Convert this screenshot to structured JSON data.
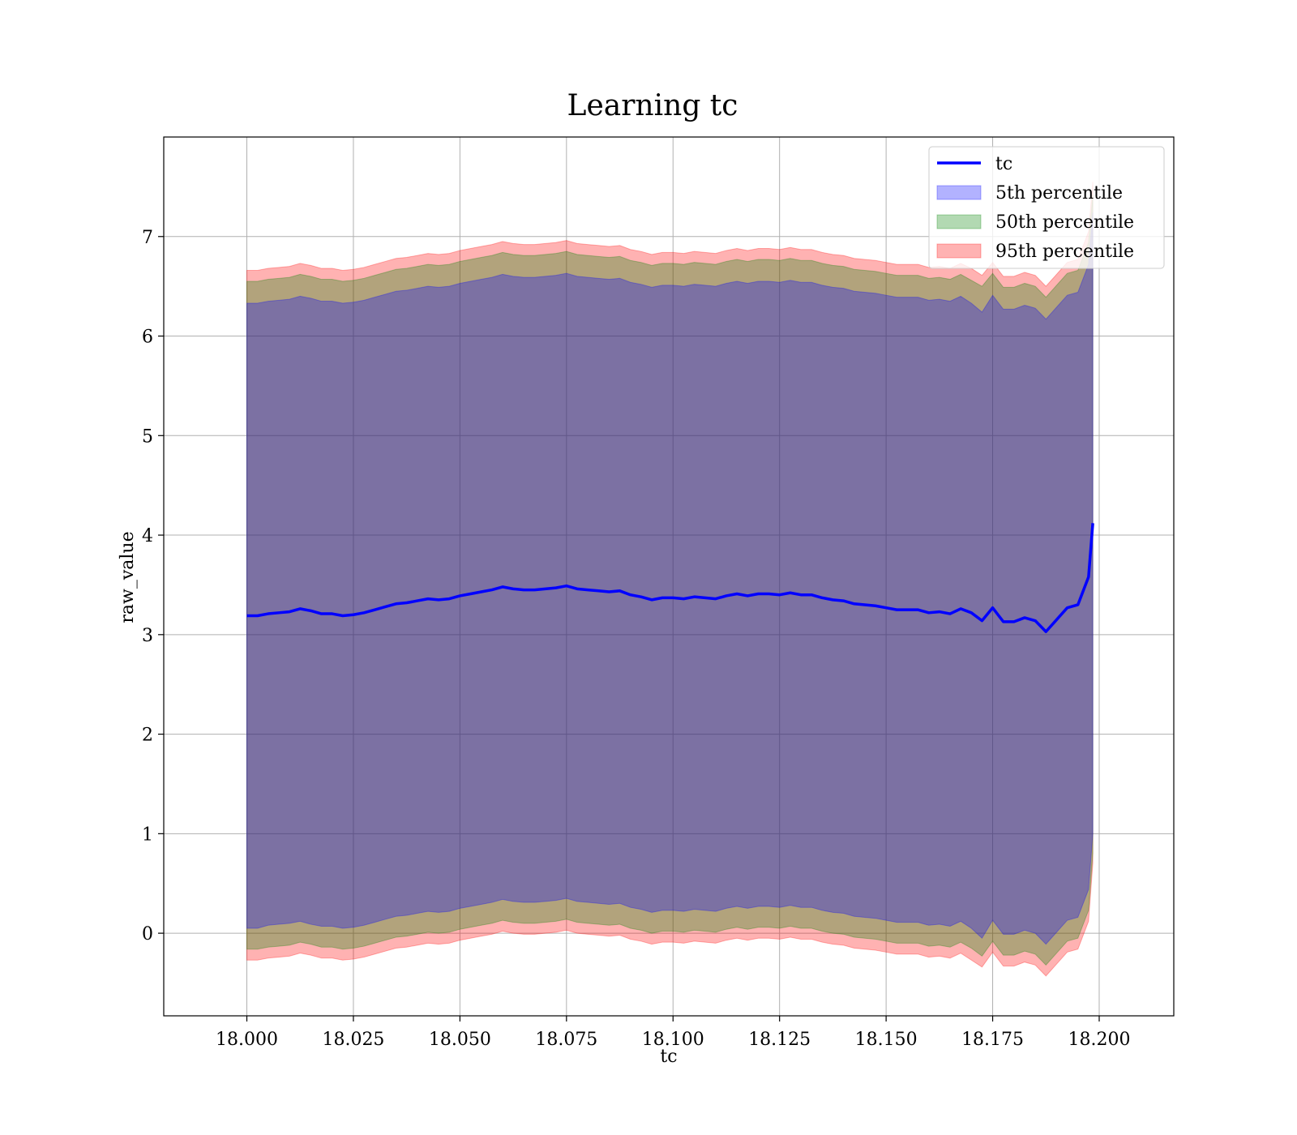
{
  "chart_data": {
    "type": "area",
    "title": "Learning tc",
    "xlabel": "tc",
    "ylabel": "raw_value",
    "xlim": [
      17.9805,
      18.2175
    ],
    "ylim": [
      -0.83,
      8.0
    ],
    "xticks": [
      18.0,
      18.025,
      18.05,
      18.075,
      18.1,
      18.125,
      18.15,
      18.175,
      18.2
    ],
    "xtick_labels": [
      "18.000",
      "18.025",
      "18.050",
      "18.075",
      "18.100",
      "18.125",
      "18.150",
      "18.175",
      "18.200"
    ],
    "yticks": [
      0,
      1,
      2,
      3,
      4,
      5,
      6,
      7
    ],
    "ytick_labels": [
      "0",
      "1",
      "2",
      "3",
      "4",
      "5",
      "6",
      "7"
    ],
    "grid": true,
    "legend_position": "top-right",
    "legend": [
      {
        "label": "tc",
        "kind": "line",
        "color": "#0000ff"
      },
      {
        "label": "5th percentile",
        "kind": "band",
        "color": "#0000ff"
      },
      {
        "label": "50th percentile",
        "kind": "band",
        "color": "#008000"
      },
      {
        "label": "95th percentile",
        "kind": "band",
        "color": "#ff0000"
      }
    ],
    "x": [
      18.0,
      18.0025,
      18.005,
      18.0075,
      18.01,
      18.0125,
      18.015,
      18.0175,
      18.02,
      18.0225,
      18.025,
      18.0275,
      18.03,
      18.0325,
      18.035,
      18.0375,
      18.04,
      18.0425,
      18.045,
      18.0475,
      18.05,
      18.0525,
      18.055,
      18.0575,
      18.06,
      18.0625,
      18.065,
      18.0675,
      18.07,
      18.0725,
      18.075,
      18.0775,
      18.08,
      18.0825,
      18.085,
      18.0875,
      18.09,
      18.0925,
      18.095,
      18.0975,
      18.1,
      18.1025,
      18.105,
      18.1075,
      18.11,
      18.1125,
      18.115,
      18.1175,
      18.12,
      18.1225,
      18.125,
      18.1275,
      18.13,
      18.1325,
      18.135,
      18.1375,
      18.14,
      18.1425,
      18.145,
      18.1475,
      18.15,
      18.1525,
      18.155,
      18.1575,
      18.16,
      18.1625,
      18.165,
      18.1675,
      18.17,
      18.1725,
      18.175,
      18.1775,
      18.18,
      18.1825,
      18.185,
      18.1875,
      18.19,
      18.1925,
      18.195,
      18.1975,
      18.1985
    ],
    "series": [
      {
        "name": "tc",
        "kind": "line",
        "color": "#0000ff",
        "values": [
          3.19,
          3.19,
          3.21,
          3.22,
          3.23,
          3.26,
          3.24,
          3.21,
          3.21,
          3.19,
          3.2,
          3.22,
          3.25,
          3.28,
          3.31,
          3.32,
          3.34,
          3.36,
          3.35,
          3.36,
          3.39,
          3.41,
          3.43,
          3.45,
          3.48,
          3.46,
          3.45,
          3.45,
          3.46,
          3.47,
          3.49,
          3.46,
          3.45,
          3.44,
          3.43,
          3.44,
          3.4,
          3.38,
          3.35,
          3.37,
          3.37,
          3.36,
          3.38,
          3.37,
          3.36,
          3.39,
          3.41,
          3.39,
          3.41,
          3.41,
          3.4,
          3.42,
          3.4,
          3.4,
          3.37,
          3.35,
          3.34,
          3.31,
          3.3,
          3.29,
          3.27,
          3.25,
          3.25,
          3.25,
          3.22,
          3.23,
          3.21,
          3.26,
          3.22,
          3.14,
          3.27,
          3.13,
          3.13,
          3.17,
          3.14,
          3.03,
          3.15,
          3.27,
          3.3,
          3.58,
          4.12
        ]
      },
      {
        "name": "5th percentile",
        "kind": "band",
        "color": "#0000ff",
        "opacity": 0.3,
        "values_low": [
          0.05,
          0.05,
          0.08,
          0.09,
          0.1,
          0.12,
          0.09,
          0.07,
          0.07,
          0.05,
          0.06,
          0.08,
          0.11,
          0.14,
          0.17,
          0.18,
          0.2,
          0.22,
          0.21,
          0.22,
          0.25,
          0.27,
          0.29,
          0.31,
          0.34,
          0.32,
          0.31,
          0.31,
          0.32,
          0.33,
          0.35,
          0.32,
          0.31,
          0.3,
          0.29,
          0.3,
          0.26,
          0.24,
          0.21,
          0.23,
          0.23,
          0.22,
          0.24,
          0.23,
          0.22,
          0.25,
          0.27,
          0.25,
          0.27,
          0.27,
          0.26,
          0.28,
          0.26,
          0.26,
          0.23,
          0.21,
          0.2,
          0.17,
          0.16,
          0.15,
          0.13,
          0.11,
          0.11,
          0.11,
          0.08,
          0.09,
          0.07,
          0.12,
          0.05,
          -0.05,
          0.13,
          -0.01,
          -0.01,
          0.03,
          0.0,
          -0.11,
          0.01,
          0.13,
          0.16,
          0.44,
          1.0
        ],
        "values_high": [
          6.33,
          6.33,
          6.35,
          6.36,
          6.37,
          6.4,
          6.38,
          6.35,
          6.35,
          6.33,
          6.34,
          6.36,
          6.39,
          6.42,
          6.45,
          6.46,
          6.48,
          6.5,
          6.49,
          6.5,
          6.53,
          6.55,
          6.57,
          6.59,
          6.62,
          6.6,
          6.59,
          6.59,
          6.6,
          6.61,
          6.63,
          6.6,
          6.59,
          6.58,
          6.57,
          6.58,
          6.54,
          6.52,
          6.49,
          6.51,
          6.51,
          6.5,
          6.52,
          6.51,
          6.5,
          6.53,
          6.55,
          6.53,
          6.55,
          6.55,
          6.54,
          6.56,
          6.54,
          6.54,
          6.51,
          6.49,
          6.48,
          6.45,
          6.44,
          6.43,
          6.41,
          6.39,
          6.39,
          6.39,
          6.36,
          6.37,
          6.35,
          6.4,
          6.33,
          6.24,
          6.41,
          6.27,
          6.27,
          6.31,
          6.28,
          6.17,
          6.29,
          6.41,
          6.44,
          6.72,
          7.24
        ]
      },
      {
        "name": "50th percentile",
        "kind": "band",
        "color": "#008000",
        "opacity": 0.3,
        "values_low": [
          -0.16,
          -0.16,
          -0.14,
          -0.13,
          -0.12,
          -0.09,
          -0.11,
          -0.14,
          -0.14,
          -0.16,
          -0.15,
          -0.13,
          -0.1,
          -0.07,
          -0.04,
          -0.03,
          -0.01,
          0.01,
          0.0,
          0.01,
          0.04,
          0.06,
          0.08,
          0.1,
          0.13,
          0.11,
          0.1,
          0.1,
          0.11,
          0.12,
          0.14,
          0.11,
          0.1,
          0.09,
          0.08,
          0.09,
          0.05,
          0.03,
          0.0,
          0.02,
          0.02,
          0.01,
          0.03,
          0.02,
          0.01,
          0.04,
          0.06,
          0.04,
          0.06,
          0.06,
          0.05,
          0.07,
          0.05,
          0.05,
          0.02,
          0.0,
          -0.01,
          -0.04,
          -0.05,
          -0.06,
          -0.08,
          -0.1,
          -0.1,
          -0.1,
          -0.13,
          -0.12,
          -0.14,
          -0.09,
          -0.15,
          -0.23,
          -0.08,
          -0.22,
          -0.22,
          -0.18,
          -0.21,
          -0.32,
          -0.2,
          -0.08,
          -0.05,
          0.23,
          0.8
        ],
        "values_high": [
          6.55,
          6.55,
          6.57,
          6.58,
          6.59,
          6.62,
          6.6,
          6.57,
          6.57,
          6.55,
          6.56,
          6.58,
          6.61,
          6.64,
          6.67,
          6.68,
          6.7,
          6.72,
          6.71,
          6.72,
          6.75,
          6.77,
          6.79,
          6.81,
          6.84,
          6.82,
          6.81,
          6.81,
          6.82,
          6.83,
          6.85,
          6.82,
          6.81,
          6.8,
          6.79,
          6.8,
          6.76,
          6.74,
          6.71,
          6.73,
          6.73,
          6.72,
          6.74,
          6.73,
          6.72,
          6.75,
          6.77,
          6.75,
          6.77,
          6.77,
          6.76,
          6.78,
          6.76,
          6.76,
          6.73,
          6.71,
          6.7,
          6.67,
          6.66,
          6.65,
          6.63,
          6.61,
          6.61,
          6.61,
          6.58,
          6.59,
          6.57,
          6.62,
          6.56,
          6.5,
          6.63,
          6.49,
          6.49,
          6.53,
          6.5,
          6.39,
          6.51,
          6.63,
          6.66,
          6.94,
          7.42
        ]
      },
      {
        "name": "95th percentile",
        "kind": "band",
        "color": "#ff0000",
        "opacity": 0.3,
        "values_low": [
          -0.27,
          -0.27,
          -0.25,
          -0.24,
          -0.23,
          -0.2,
          -0.22,
          -0.25,
          -0.25,
          -0.27,
          -0.26,
          -0.24,
          -0.21,
          -0.18,
          -0.15,
          -0.14,
          -0.12,
          -0.1,
          -0.11,
          -0.1,
          -0.07,
          -0.05,
          -0.03,
          -0.01,
          0.02,
          0.0,
          -0.01,
          -0.01,
          0.0,
          0.01,
          0.03,
          0.0,
          -0.01,
          -0.02,
          -0.03,
          -0.02,
          -0.06,
          -0.08,
          -0.11,
          -0.09,
          -0.09,
          -0.1,
          -0.08,
          -0.09,
          -0.1,
          -0.07,
          -0.05,
          -0.07,
          -0.05,
          -0.05,
          -0.06,
          -0.04,
          -0.06,
          -0.06,
          -0.09,
          -0.11,
          -0.12,
          -0.15,
          -0.16,
          -0.17,
          -0.19,
          -0.21,
          -0.21,
          -0.21,
          -0.24,
          -0.23,
          -0.25,
          -0.2,
          -0.27,
          -0.34,
          -0.19,
          -0.33,
          -0.33,
          -0.29,
          -0.32,
          -0.43,
          -0.31,
          -0.19,
          -0.16,
          0.12,
          0.7
        ],
        "values_high": [
          6.66,
          6.66,
          6.68,
          6.69,
          6.7,
          6.73,
          6.71,
          6.68,
          6.68,
          6.66,
          6.67,
          6.69,
          6.72,
          6.75,
          6.78,
          6.79,
          6.81,
          6.83,
          6.82,
          6.83,
          6.86,
          6.88,
          6.9,
          6.92,
          6.95,
          6.93,
          6.92,
          6.92,
          6.93,
          6.94,
          6.96,
          6.93,
          6.92,
          6.91,
          6.9,
          6.91,
          6.87,
          6.85,
          6.82,
          6.84,
          6.84,
          6.83,
          6.85,
          6.84,
          6.83,
          6.86,
          6.88,
          6.86,
          6.88,
          6.88,
          6.87,
          6.89,
          6.87,
          6.87,
          6.84,
          6.82,
          6.81,
          6.78,
          6.77,
          6.76,
          6.74,
          6.72,
          6.72,
          6.72,
          6.69,
          6.7,
          6.68,
          6.73,
          6.68,
          6.61,
          6.74,
          6.6,
          6.6,
          6.64,
          6.61,
          6.5,
          6.62,
          6.74,
          6.77,
          7.05,
          7.55
        ]
      }
    ]
  }
}
